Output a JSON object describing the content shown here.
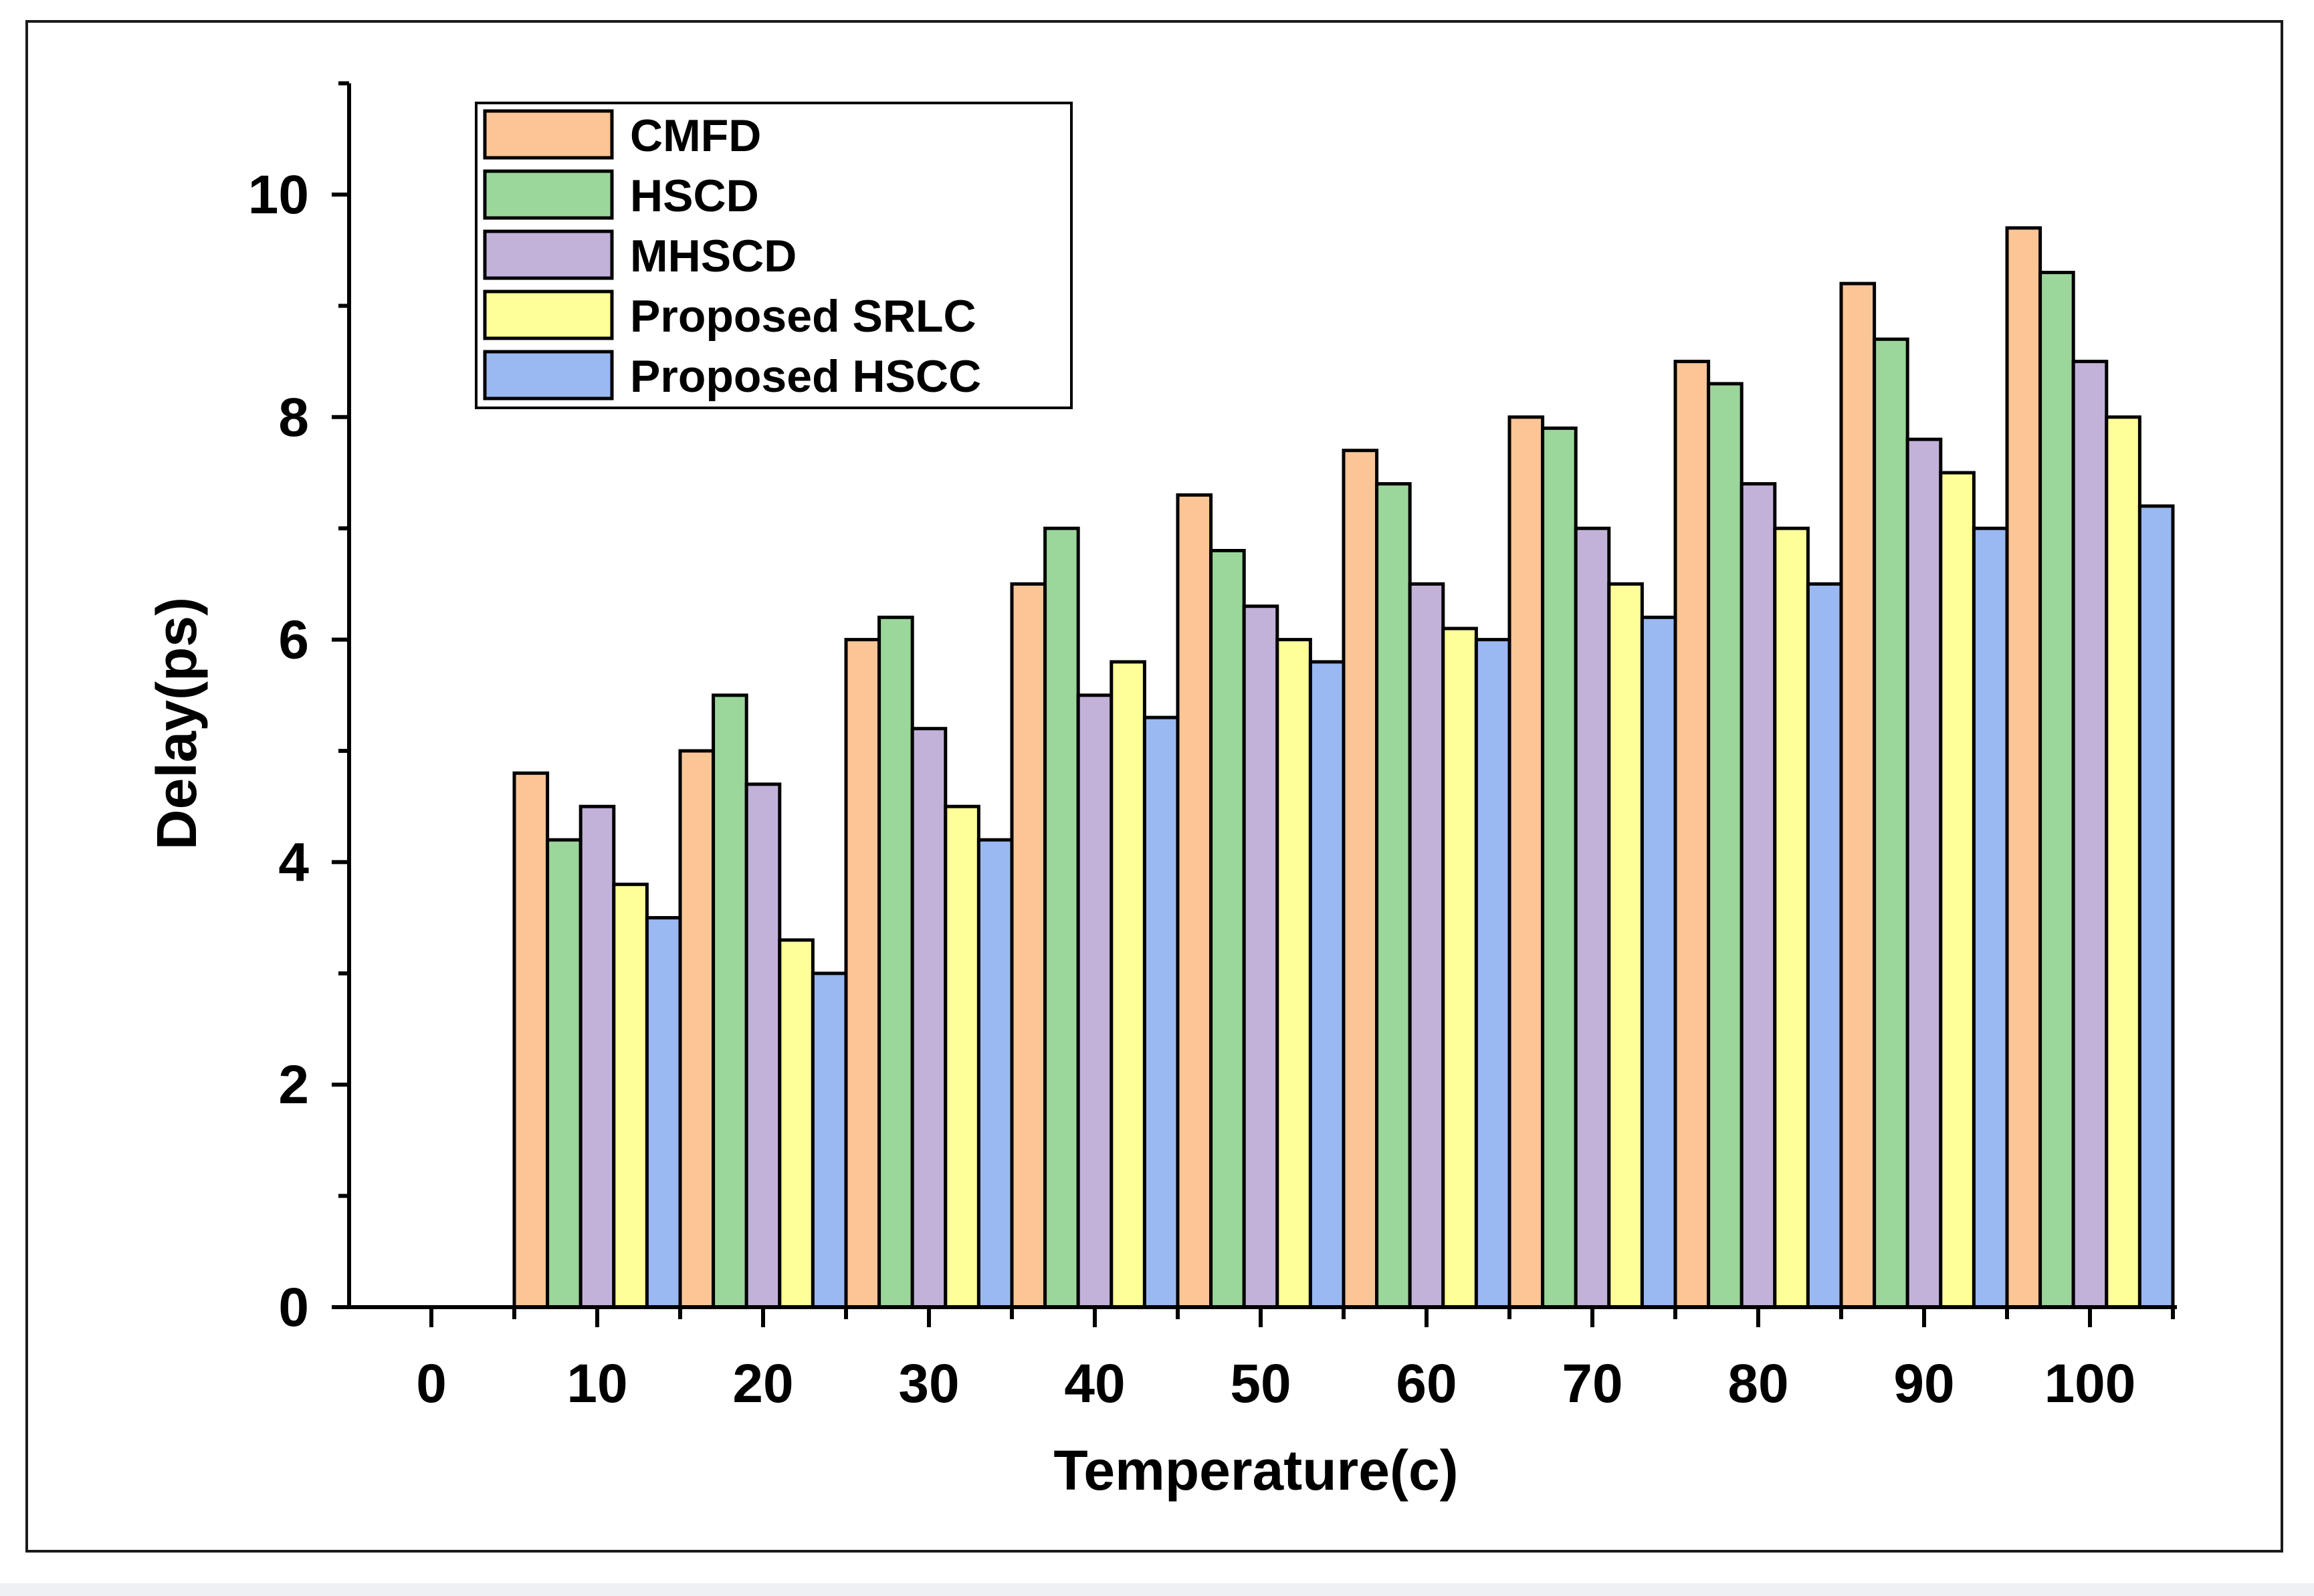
{
  "chart_data": {
    "type": "bar",
    "title": "",
    "xlabel": "Temperature(c)",
    "ylabel": "Delay(ps)",
    "ylim": [
      0,
      11
    ],
    "yticks": [
      0,
      2,
      4,
      6,
      8,
      10
    ],
    "categories": [
      "0",
      "10",
      "20",
      "30",
      "40",
      "50",
      "60",
      "70",
      "80",
      "90",
      "100"
    ],
    "legend_position": "top-left",
    "series": [
      {
        "name": "CMFD",
        "color": "#fbc596",
        "values": [
          0,
          4.8,
          5.0,
          6.0,
          6.5,
          7.3,
          7.7,
          8.0,
          8.5,
          9.2,
          9.7
        ]
      },
      {
        "name": "HSCD",
        "color": "#9bd69b",
        "values": [
          0,
          4.2,
          5.5,
          6.2,
          7.0,
          6.8,
          7.4,
          7.9,
          8.3,
          8.7,
          9.3
        ]
      },
      {
        "name": "MHSCD",
        "color": "#c2b2da",
        "values": [
          0,
          4.5,
          4.7,
          5.2,
          5.5,
          6.3,
          6.5,
          7.0,
          7.4,
          7.8,
          8.5
        ]
      },
      {
        "name": "Proposed SRLC",
        "color": "#ffff99",
        "values": [
          0,
          3.8,
          3.3,
          4.5,
          5.8,
          6.0,
          6.1,
          6.5,
          7.0,
          7.5,
          8.0
        ]
      },
      {
        "name": "Proposed HSCC",
        "color": "#9ab8f2",
        "values": [
          0,
          3.5,
          3.0,
          4.2,
          5.3,
          5.8,
          6.0,
          6.2,
          6.5,
          7.0,
          7.2
        ]
      }
    ]
  }
}
